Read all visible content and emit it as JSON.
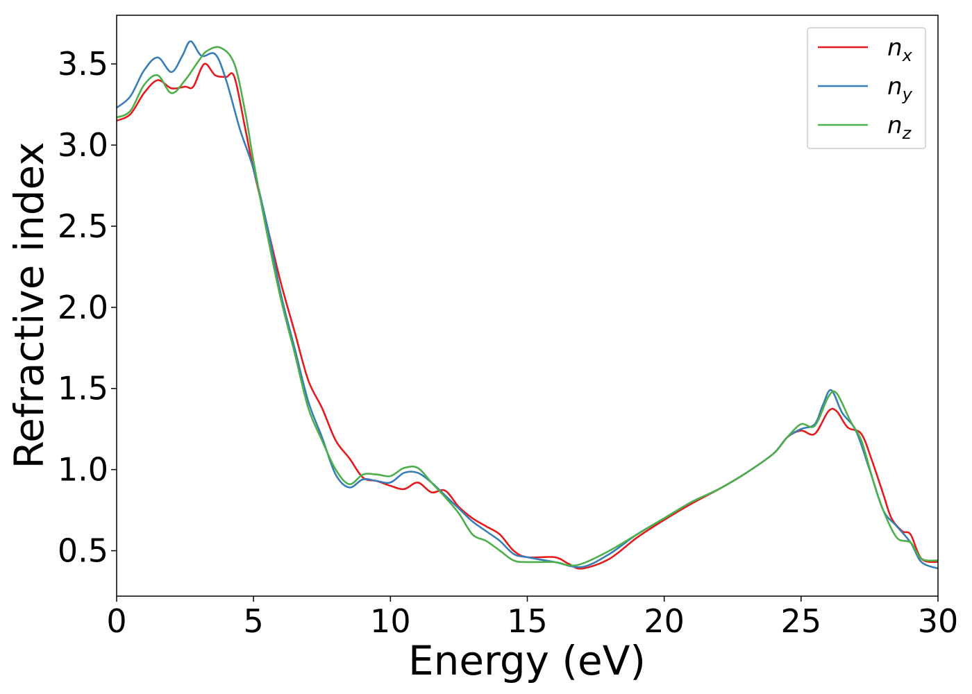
{
  "chart_data": {
    "type": "line",
    "title": "",
    "xlabel": "Energy (eV)",
    "ylabel": "Refractive index",
    "xlim": [
      0,
      30
    ],
    "ylim": [
      0.22,
      3.8
    ],
    "xticks": [
      0,
      5,
      10,
      15,
      20,
      25,
      30
    ],
    "xtick_labels": [
      "0",
      "5",
      "10",
      "15",
      "20",
      "25",
      "30"
    ],
    "yticks": [
      0.5,
      1.0,
      1.5,
      2.0,
      2.5,
      3.0,
      3.5
    ],
    "ytick_labels": [
      "0.5",
      "1.0",
      "1.5",
      "2.0",
      "2.5",
      "3.0",
      "3.5"
    ],
    "grid": false,
    "legend_position": "top-right",
    "series": [
      {
        "name": "n",
        "subscript": "x",
        "color": "#e41a1c",
        "points": [
          [
            0,
            3.15
          ],
          [
            0.5,
            3.19
          ],
          [
            1,
            3.32
          ],
          [
            1.5,
            3.4
          ],
          [
            2,
            3.35
          ],
          [
            2.5,
            3.36
          ],
          [
            2.8,
            3.36
          ],
          [
            3.2,
            3.5
          ],
          [
            3.6,
            3.43
          ],
          [
            4,
            3.42
          ],
          [
            4.3,
            3.42
          ],
          [
            4.7,
            3.1
          ],
          [
            5,
            2.85
          ],
          [
            5.5,
            2.5
          ],
          [
            6,
            2.15
          ],
          [
            6.5,
            1.85
          ],
          [
            7,
            1.55
          ],
          [
            7.5,
            1.38
          ],
          [
            8,
            1.18
          ],
          [
            8.5,
            1.07
          ],
          [
            9,
            0.95
          ],
          [
            9.5,
            0.93
          ],
          [
            10,
            0.9
          ],
          [
            10.5,
            0.88
          ],
          [
            11,
            0.92
          ],
          [
            11.5,
            0.86
          ],
          [
            12,
            0.87
          ],
          [
            12.5,
            0.77
          ],
          [
            13,
            0.7
          ],
          [
            13.5,
            0.65
          ],
          [
            14,
            0.6
          ],
          [
            14.5,
            0.5
          ],
          [
            15,
            0.46
          ],
          [
            16,
            0.46
          ],
          [
            16.5,
            0.42
          ],
          [
            17,
            0.39
          ],
          [
            18,
            0.45
          ],
          [
            19,
            0.58
          ],
          [
            20,
            0.69
          ],
          [
            21,
            0.79
          ],
          [
            22,
            0.88
          ],
          [
            23,
            0.98
          ],
          [
            24,
            1.1
          ],
          [
            24.5,
            1.2
          ],
          [
            25,
            1.24
          ],
          [
            25.5,
            1.22
          ],
          [
            26,
            1.36
          ],
          [
            26.3,
            1.36
          ],
          [
            26.7,
            1.26
          ],
          [
            27.2,
            1.22
          ],
          [
            27.6,
            1.05
          ],
          [
            28,
            0.85
          ],
          [
            28.3,
            0.7
          ],
          [
            28.7,
            0.62
          ],
          [
            29,
            0.6
          ],
          [
            29.4,
            0.45
          ],
          [
            30,
            0.43
          ]
        ]
      },
      {
        "name": "n",
        "subscript": "y",
        "color": "#377eb8",
        "points": [
          [
            0,
            3.23
          ],
          [
            0.5,
            3.3
          ],
          [
            1,
            3.46
          ],
          [
            1.5,
            3.54
          ],
          [
            2,
            3.45
          ],
          [
            2.4,
            3.55
          ],
          [
            2.7,
            3.64
          ],
          [
            3.1,
            3.55
          ],
          [
            3.6,
            3.56
          ],
          [
            4,
            3.4
          ],
          [
            4.5,
            3.1
          ],
          [
            5,
            2.85
          ],
          [
            5.5,
            2.5
          ],
          [
            6,
            2.08
          ],
          [
            6.5,
            1.75
          ],
          [
            7,
            1.42
          ],
          [
            7.5,
            1.2
          ],
          [
            8,
            0.97
          ],
          [
            8.5,
            0.89
          ],
          [
            9,
            0.94
          ],
          [
            9.5,
            0.93
          ],
          [
            10,
            0.92
          ],
          [
            10.5,
            0.98
          ],
          [
            11,
            0.98
          ],
          [
            11.5,
            0.92
          ],
          [
            12,
            0.84
          ],
          [
            12.5,
            0.76
          ],
          [
            13,
            0.68
          ],
          [
            13.5,
            0.62
          ],
          [
            14,
            0.56
          ],
          [
            14.5,
            0.48
          ],
          [
            15,
            0.46
          ],
          [
            16,
            0.43
          ],
          [
            17,
            0.4
          ],
          [
            18,
            0.48
          ],
          [
            19,
            0.6
          ],
          [
            20,
            0.7
          ],
          [
            21,
            0.8
          ],
          [
            22,
            0.88
          ],
          [
            23,
            0.98
          ],
          [
            24,
            1.1
          ],
          [
            24.5,
            1.2
          ],
          [
            25,
            1.25
          ],
          [
            25.5,
            1.28
          ],
          [
            25.8,
            1.4
          ],
          [
            26.1,
            1.49
          ],
          [
            26.5,
            1.35
          ],
          [
            27,
            1.24
          ],
          [
            27.5,
            1.0
          ],
          [
            28,
            0.75
          ],
          [
            28.5,
            0.65
          ],
          [
            29,
            0.55
          ],
          [
            29.4,
            0.43
          ],
          [
            30,
            0.39
          ]
        ]
      },
      {
        "name": "n",
        "subscript": "z",
        "color": "#4daf4a",
        "points": [
          [
            0,
            3.17
          ],
          [
            0.5,
            3.21
          ],
          [
            1,
            3.37
          ],
          [
            1.5,
            3.43
          ],
          [
            2,
            3.32
          ],
          [
            2.5,
            3.4
          ],
          [
            3,
            3.52
          ],
          [
            3.3,
            3.58
          ],
          [
            3.8,
            3.6
          ],
          [
            4.3,
            3.5
          ],
          [
            4.7,
            3.2
          ],
          [
            5,
            2.9
          ],
          [
            5.5,
            2.45
          ],
          [
            6,
            2.05
          ],
          [
            6.5,
            1.72
          ],
          [
            7,
            1.38
          ],
          [
            7.5,
            1.18
          ],
          [
            8,
            1.0
          ],
          [
            8.5,
            0.91
          ],
          [
            9,
            0.97
          ],
          [
            9.5,
            0.97
          ],
          [
            10,
            0.96
          ],
          [
            10.5,
            1.01
          ],
          [
            11,
            1.01
          ],
          [
            11.5,
            0.92
          ],
          [
            12,
            0.83
          ],
          [
            12.5,
            0.73
          ],
          [
            13,
            0.6
          ],
          [
            13.5,
            0.56
          ],
          [
            14,
            0.5
          ],
          [
            14.5,
            0.44
          ],
          [
            15,
            0.43
          ],
          [
            16,
            0.43
          ],
          [
            16.5,
            0.41
          ],
          [
            17,
            0.42
          ],
          [
            18,
            0.5
          ],
          [
            19,
            0.6
          ],
          [
            20,
            0.7
          ],
          [
            21,
            0.8
          ],
          [
            22,
            0.88
          ],
          [
            23,
            0.98
          ],
          [
            24,
            1.1
          ],
          [
            24.5,
            1.2
          ],
          [
            25,
            1.28
          ],
          [
            25.5,
            1.27
          ],
          [
            26,
            1.45
          ],
          [
            26.3,
            1.47
          ],
          [
            26.8,
            1.3
          ],
          [
            27.2,
            1.18
          ],
          [
            27.6,
            0.95
          ],
          [
            28,
            0.75
          ],
          [
            28.5,
            0.58
          ],
          [
            29,
            0.55
          ],
          [
            29.4,
            0.45
          ],
          [
            30,
            0.44
          ]
        ]
      }
    ]
  }
}
